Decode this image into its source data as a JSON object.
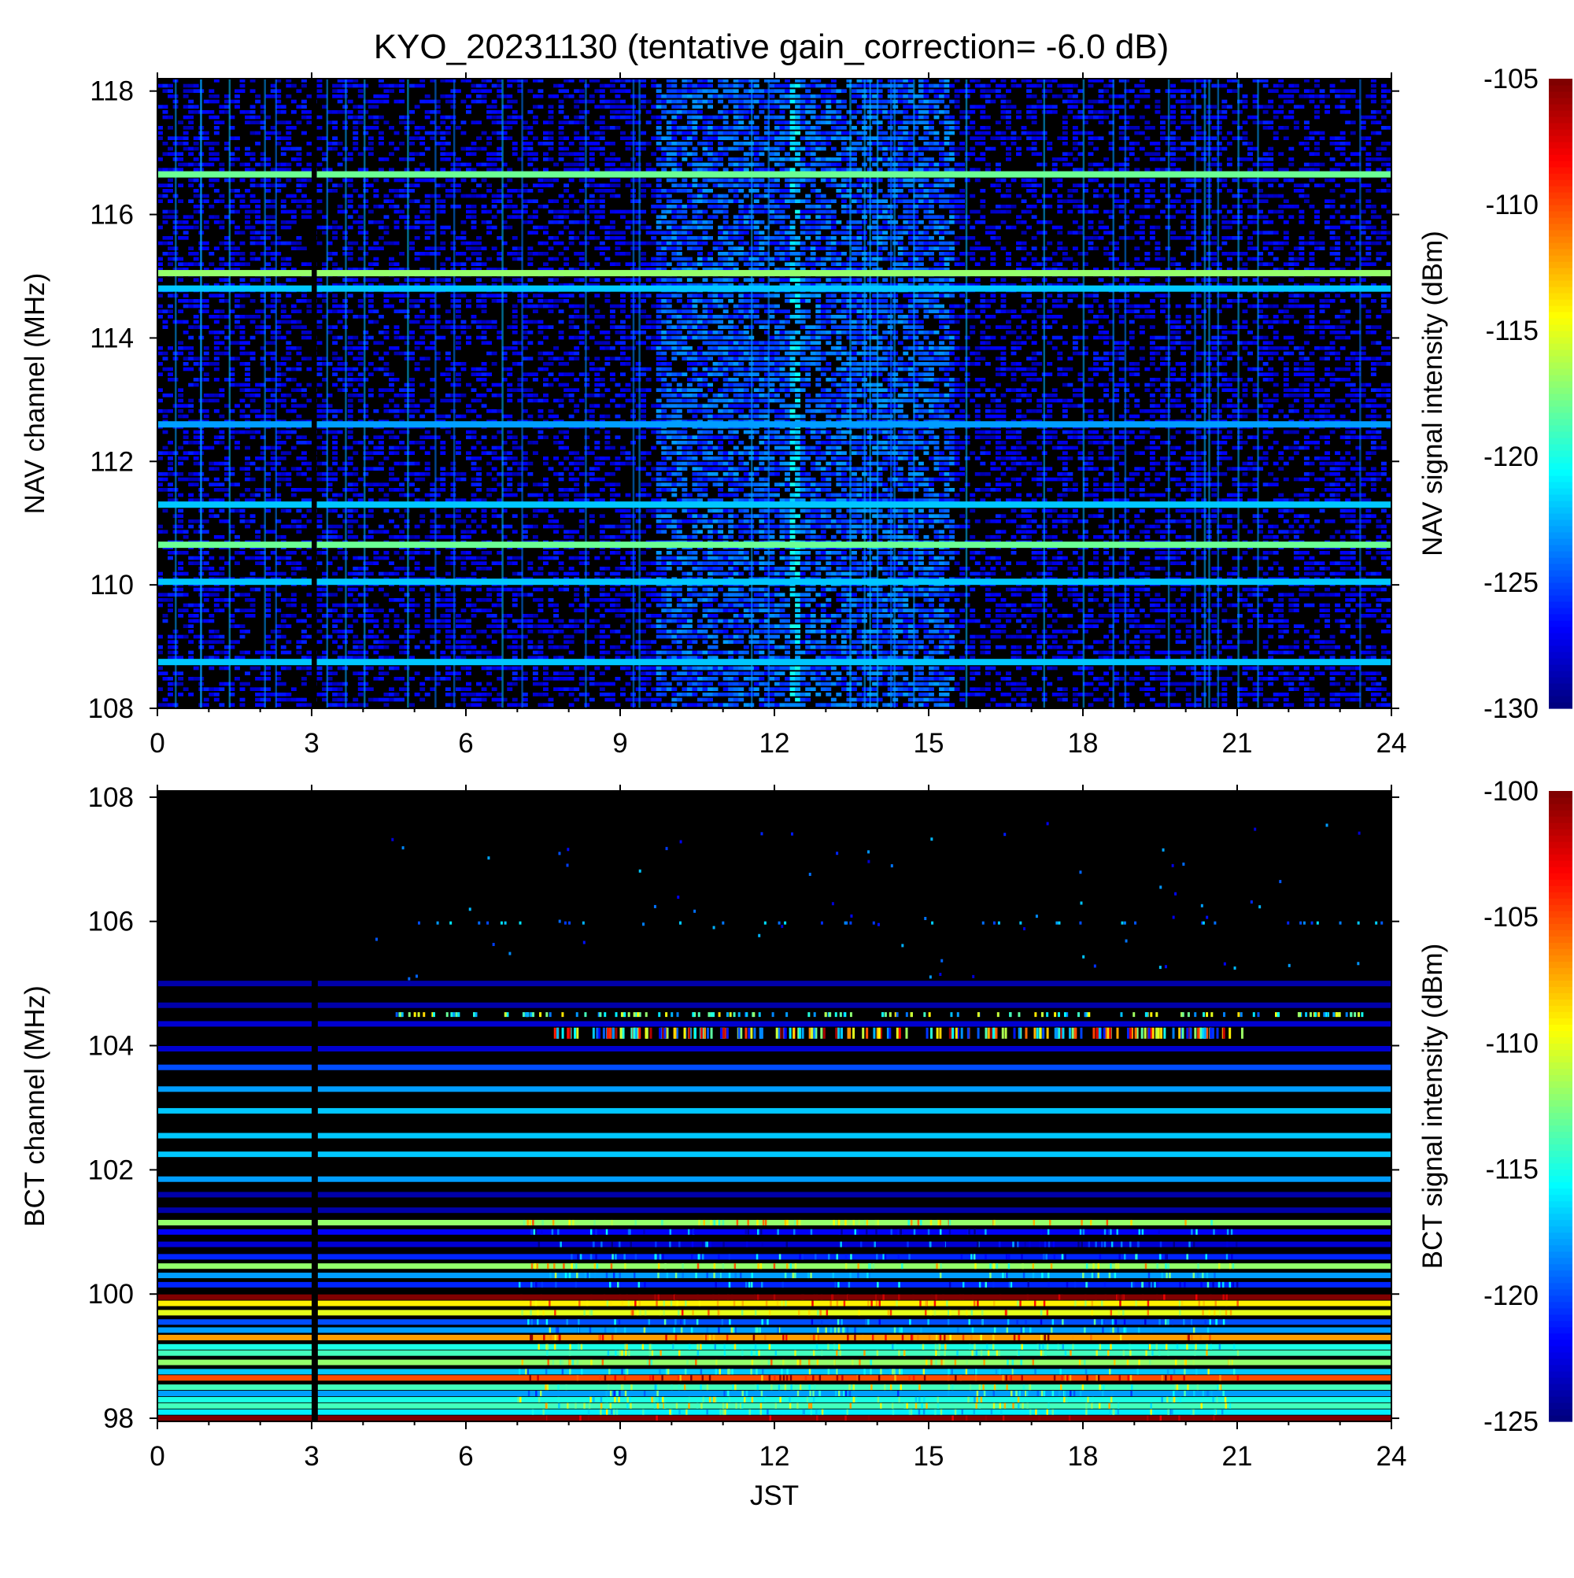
{
  "page_title": "KYO_20231130 (tentative gain_correction= -6.0 dB)",
  "chart_data": [
    {
      "type": "heatmap",
      "name": "NAV",
      "title": "",
      "xlabel": "",
      "ylabel": "NAV channel (MHz)",
      "colorbar_label": "NAV signal intensity (dBm)",
      "xlim": [
        0,
        24
      ],
      "ylim": [
        108,
        118.2
      ],
      "x_ticks": [
        "0",
        "3",
        "6",
        "9",
        "12",
        "15",
        "18",
        "21",
        "24"
      ],
      "y_ticks": [
        "108",
        "110",
        "112",
        "114",
        "116",
        "118"
      ],
      "colorbar_range": [
        -130,
        -105
      ],
      "colorbar_ticks": [
        "-130",
        "-125",
        "-120",
        "-115",
        "-110",
        "-105"
      ],
      "background_level": -130,
      "bands": [
        {
          "freq": 116.65,
          "level": -118
        },
        {
          "freq": 115.05,
          "level": -117
        },
        {
          "freq": 114.8,
          "level": -122
        },
        {
          "freq": 112.6,
          "level": -123
        },
        {
          "freq": 111.3,
          "level": -122
        },
        {
          "freq": 110.65,
          "level": -118
        },
        {
          "freq": 110.05,
          "level": -122
        },
        {
          "freq": 108.75,
          "level": -122
        }
      ],
      "enhanced_period": {
        "start": 9.7,
        "end": 15.5,
        "level": -125
      },
      "enhanced_spike": {
        "time": 12.4,
        "level": -121
      },
      "data_gap": {
        "start": 3.0,
        "end": 3.1
      }
    },
    {
      "type": "heatmap",
      "name": "BCT",
      "title": "",
      "xlabel": "JST",
      "ylabel": "BCT channel (MHz)",
      "colorbar_label": "BCT signal intensity (dBm)",
      "xlim": [
        0,
        24
      ],
      "ylim": [
        97.95,
        108.1
      ],
      "x_ticks": [
        "0",
        "3",
        "6",
        "9",
        "12",
        "15",
        "18",
        "21",
        "24"
      ],
      "y_ticks": [
        "98",
        "100",
        "102",
        "104",
        "106",
        "108"
      ],
      "colorbar_range": [
        -125,
        -100
      ],
      "colorbar_ticks": [
        "-125",
        "-120",
        "-115",
        "-110",
        "-105",
        "-100"
      ],
      "background_level": -126,
      "bands": [
        {
          "freq": 105.0,
          "level": -124
        },
        {
          "freq": 104.65,
          "level": -124
        },
        {
          "freq": 104.35,
          "level": -123
        },
        {
          "freq": 103.95,
          "level": -123
        },
        {
          "freq": 103.65,
          "level": -120
        },
        {
          "freq": 103.3,
          "level": -118
        },
        {
          "freq": 102.95,
          "level": -117
        },
        {
          "freq": 102.55,
          "level": -117
        },
        {
          "freq": 102.25,
          "level": -117
        },
        {
          "freq": 101.85,
          "level": -118
        },
        {
          "freq": 101.6,
          "level": -124
        },
        {
          "freq": 101.35,
          "level": -124
        },
        {
          "freq": 101.15,
          "level": -112
        },
        {
          "freq": 101.0,
          "level": -122
        },
        {
          "freq": 100.8,
          "level": -123
        },
        {
          "freq": 100.6,
          "level": -121
        },
        {
          "freq": 100.45,
          "level": -112
        },
        {
          "freq": 100.3,
          "level": -118
        },
        {
          "freq": 100.15,
          "level": -121
        },
        {
          "freq": 99.95,
          "level": -100
        },
        {
          "freq": 99.85,
          "level": -109
        },
        {
          "freq": 99.7,
          "level": -110
        },
        {
          "freq": 99.55,
          "level": -120
        },
        {
          "freq": 99.42,
          "level": -118
        },
        {
          "freq": 99.3,
          "level": -107
        },
        {
          "freq": 99.15,
          "level": -115
        },
        {
          "freq": 99.05,
          "level": -114
        },
        {
          "freq": 98.9,
          "level": -112
        },
        {
          "freq": 98.75,
          "level": -117
        },
        {
          "freq": 98.65,
          "level": -105
        },
        {
          "freq": 98.5,
          "level": -114
        },
        {
          "freq": 98.4,
          "level": -118
        },
        {
          "freq": 98.3,
          "level": -115
        },
        {
          "freq": 98.2,
          "level": -114
        },
        {
          "freq": 98.1,
          "level": -116
        },
        {
          "freq": 98.0,
          "level": -100
        }
      ],
      "data_gap": {
        "start": 3.0,
        "end": 3.12
      }
    }
  ]
}
